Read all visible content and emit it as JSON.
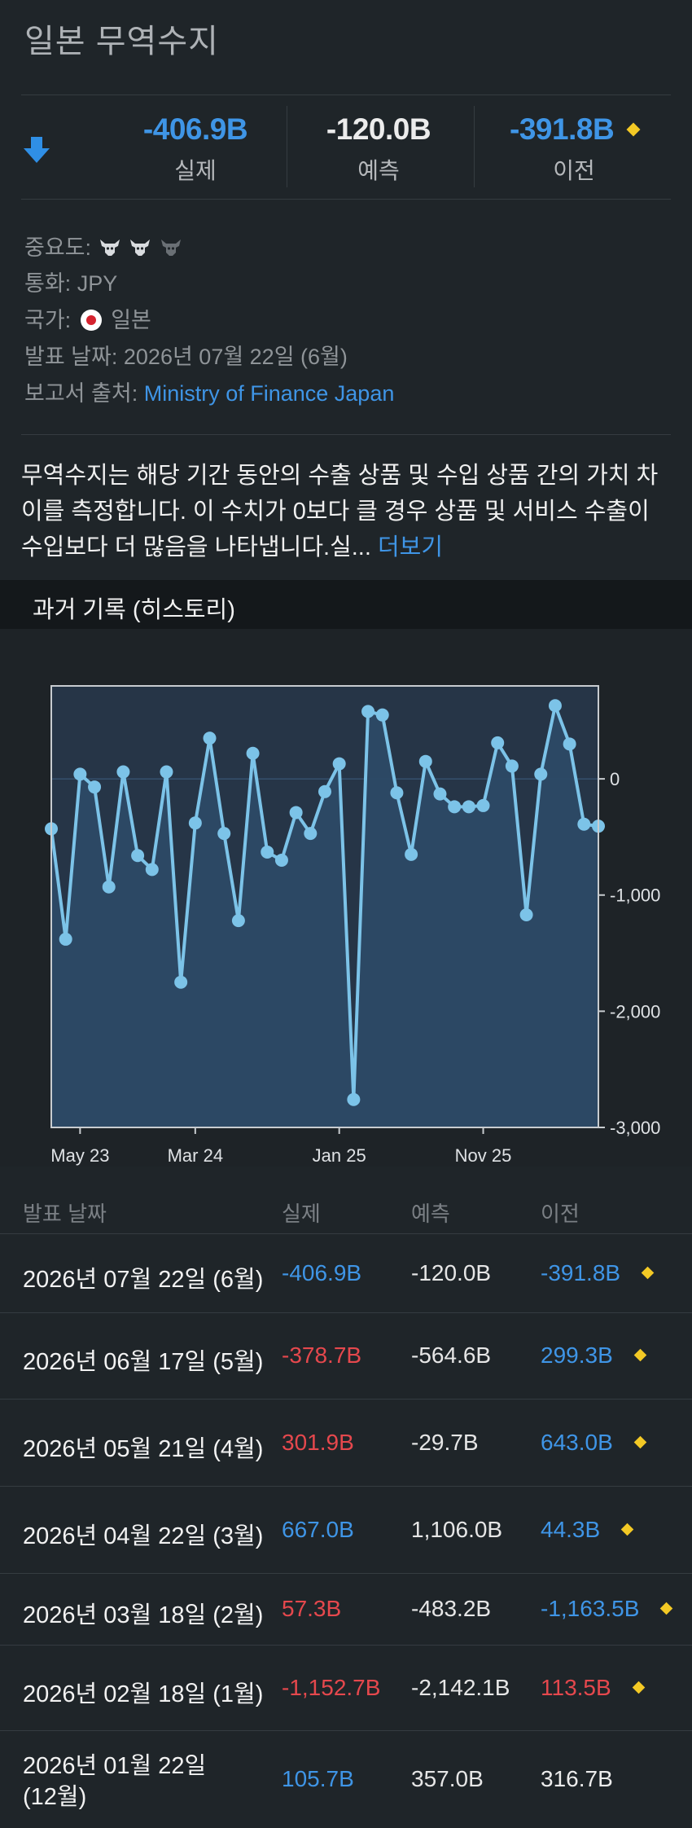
{
  "title": "일본 무역수지",
  "summary": {
    "actual_value": "-406.9B",
    "actual_label": "실제",
    "forecast_value": "-120.0B",
    "forecast_label": "예측",
    "previous_value": "-391.8B",
    "previous_label": "이전",
    "direction_icon": "down-arrow-icon",
    "revised_icon": "diamond-icon"
  },
  "info": {
    "importance_label": "중요도:",
    "importance_level": 2,
    "importance_max": 3,
    "currency_label": "통화:",
    "currency_value": "JPY",
    "country_label": "국가:",
    "country_value": "일본",
    "release_label": "발표 날짜:",
    "release_value": "2026년 07월 22일 (6월)",
    "source_label": "보고서 출처:",
    "source_value": "Ministry of Finance Japan"
  },
  "description": {
    "text": "무역수지는 해당 기간 동안의 수출 상품 및 수입 상품 간의 가치 차이를 측정합니다. 이 수치가 0보다 클 경우 상품 및 서비스 수출이 수입보다 더 많음을 나타냅니다.실...",
    "more_link": "더보기"
  },
  "history_title": "과거 기록 (히스토리)",
  "chart_data": {
    "type": "line",
    "x_tick_labels": [
      "May 23",
      "Mar 24",
      "Jan 25",
      "Nov 25"
    ],
    "y_tick_labels": [
      "0",
      "-1,000",
      "-2,000",
      "-3,000"
    ],
    "ylim": [
      -3000,
      800
    ],
    "values": [
      -430,
      -1380,
      40,
      -70,
      -930,
      60,
      -660,
      -780,
      60,
      -1750,
      -380,
      350,
      -470,
      -1220,
      220,
      -630,
      -700,
      -290,
      -470,
      -110,
      130,
      -2760,
      580,
      550,
      -120,
      -650,
      150,
      -130,
      -240,
      -240,
      -230,
      310,
      110,
      -1170,
      40,
      630,
      300,
      -390,
      -407
    ],
    "colors": {
      "line": "#7cc3e8",
      "fill": "#2c4a66",
      "plot_bg": "#263547"
    }
  },
  "table": {
    "headers": {
      "date": "발표 날짜",
      "actual": "실제",
      "forecast": "예측",
      "previous": "이전"
    },
    "rows": [
      {
        "date": "2026년 07월 22일 (6월)",
        "actual": "-406.9B",
        "actual_color": "blue",
        "forecast": "-120.0B",
        "previous": "-391.8B",
        "previous_color": "blue",
        "revised": true
      },
      {
        "date": "2026년 06월 17일 (5월)",
        "actual": "-378.7B",
        "actual_color": "red",
        "forecast": "-564.6B",
        "previous": "299.3B",
        "previous_color": "blue",
        "revised": true
      },
      {
        "date": "2026년 05월 21일 (4월)",
        "actual": "301.9B",
        "actual_color": "red",
        "forecast": "-29.7B",
        "previous": "643.0B",
        "previous_color": "blue",
        "revised": true
      },
      {
        "date": "2026년 04월 22일 (3월)",
        "actual": "667.0B",
        "actual_color": "blue",
        "forecast": "1,106.0B",
        "previous": "44.3B",
        "previous_color": "blue",
        "revised": true
      },
      {
        "date": "2026년 03월 18일 (2월)",
        "actual": "57.3B",
        "actual_color": "red",
        "forecast": "-483.2B",
        "previous": "-1,163.5B",
        "previous_color": "blue",
        "revised": true
      },
      {
        "date": "2026년 02월 18일 (1월)",
        "actual": "-1,152.7B",
        "actual_color": "red",
        "forecast": "-2,142.1B",
        "previous": "113.5B",
        "previous_color": "red",
        "revised": true
      },
      {
        "date_line1": "2026년 01월 22일",
        "date_line2": "(12월)",
        "actual": "105.7B",
        "actual_color": "blue",
        "forecast": "357.0B",
        "previous": "316.7B",
        "previous_color": "white",
        "revised": false
      }
    ]
  }
}
